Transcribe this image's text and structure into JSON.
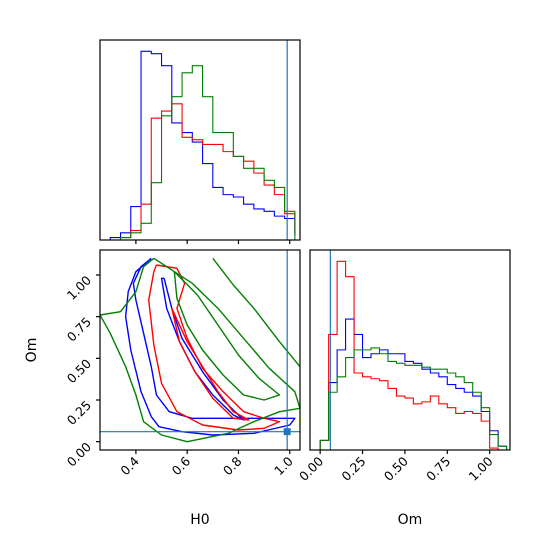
{
  "chart_data": {
    "type": "corner",
    "parameters": [
      "H0",
      "Om"
    ],
    "truth": {
      "H0": 0.99,
      "Om": 0.06,
      "color": "#1f77b4"
    },
    "series_colors": [
      "#0000ff",
      "#ff0000",
      "#008000"
    ],
    "panels": [
      {
        "id": "H0-marginal",
        "type": "histogram",
        "xlim": [
          0.26,
          1.04
        ],
        "bins_x": [
          0.3,
          0.34,
          0.38,
          0.42,
          0.46,
          0.5,
          0.54,
          0.58,
          0.62,
          0.66,
          0.7,
          0.74,
          0.78,
          0.82,
          0.86,
          0.9,
          0.94,
          0.98,
          1.02
        ],
        "xtick_values": [
          0.4,
          0.6,
          0.8,
          1.0
        ],
        "series": [
          {
            "color": "#0000ff",
            "values": [
              1,
              3,
              14,
              79,
              78,
              73,
              49,
              45,
              41,
              32,
              22,
              19,
              18,
              15,
              13,
              12,
              10,
              9,
              2
            ]
          },
          {
            "color": "#ff0000",
            "values": [
              0,
              1,
              4,
              15,
              51,
              54,
              57,
              43,
              42,
              40,
              40,
              37,
              35,
              33,
              28,
              23,
              19,
              11,
              3
            ]
          },
          {
            "color": "#008000",
            "values": [
              0,
              1,
              3,
              7,
              24,
              52,
              60,
              70,
              73,
              60,
              45,
              45,
              35,
              30,
              30,
              25,
              22,
              12,
              0
            ]
          }
        ]
      },
      {
        "id": "H0-Om-joint",
        "type": "contour",
        "xlim": [
          0.26,
          1.04
        ],
        "ylim": [
          -0.05,
          1.15
        ],
        "xtick_labels": [
          "0.4",
          "0.6",
          "0.8",
          "1.0"
        ],
        "xtick_values": [
          0.4,
          0.6,
          0.8,
          1.0
        ],
        "ytick_labels": [
          "0.00",
          "0.25",
          "0.50",
          "0.75",
          "1.00"
        ],
        "ytick_values": [
          0.0,
          0.25,
          0.5,
          0.75,
          1.0
        ],
        "xlabel": "H0",
        "ylabel": "Om",
        "contours": [
          {
            "color": "#0000ff",
            "points": [
              [
                0.46,
                1.1
              ],
              [
                0.42,
                1.05
              ],
              [
                0.39,
                0.95
              ],
              [
                0.4,
                0.85
              ],
              [
                0.43,
                0.65
              ],
              [
                0.46,
                0.45
              ],
              [
                0.48,
                0.28
              ],
              [
                0.53,
                0.18
              ],
              [
                0.62,
                0.14
              ],
              [
                0.78,
                0.14
              ],
              [
                0.92,
                0.14
              ],
              [
                1.02,
                0.14
              ],
              [
                1.0,
                0.1
              ],
              [
                0.86,
                0.05
              ],
              [
                0.7,
                0.04
              ],
              [
                0.58,
                0.06
              ],
              [
                0.49,
                0.09
              ],
              [
                0.46,
                0.15
              ],
              [
                0.42,
                0.3
              ],
              [
                0.38,
                0.55
              ],
              [
                0.36,
                0.75
              ],
              [
                0.37,
                0.9
              ],
              [
                0.4,
                1.02
              ],
              [
                0.46,
                1.1
              ]
            ]
          },
          {
            "color": "#0000ff",
            "points": [
              [
                0.51,
                0.98
              ],
              [
                0.54,
                0.8
              ],
              [
                0.58,
                0.62
              ],
              [
                0.66,
                0.42
              ],
              [
                0.74,
                0.25
              ],
              [
                0.82,
                0.13
              ],
              [
                0.78,
                0.16
              ],
              [
                0.7,
                0.28
              ],
              [
                0.63,
                0.42
              ],
              [
                0.57,
                0.6
              ],
              [
                0.52,
                0.8
              ],
              [
                0.5,
                0.98
              ],
              [
                0.51,
                0.98
              ]
            ]
          },
          {
            "color": "#ff0000",
            "points": [
              [
                0.48,
                1.06
              ],
              [
                0.56,
                1.04
              ],
              [
                0.59,
                0.95
              ],
              [
                0.56,
                0.8
              ],
              [
                0.6,
                0.62
              ],
              [
                0.66,
                0.44
              ],
              [
                0.74,
                0.3
              ],
              [
                0.82,
                0.18
              ],
              [
                0.9,
                0.14
              ],
              [
                0.96,
                0.12
              ],
              [
                0.9,
                0.08
              ],
              [
                0.8,
                0.07
              ],
              [
                0.66,
                0.1
              ],
              [
                0.56,
                0.18
              ],
              [
                0.5,
                0.35
              ],
              [
                0.47,
                0.58
              ],
              [
                0.45,
                0.85
              ],
              [
                0.47,
                1.02
              ],
              [
                0.48,
                1.06
              ]
            ]
          },
          {
            "color": "#ff0000",
            "points": [
              [
                0.54,
                0.8
              ],
              [
                0.6,
                0.6
              ],
              [
                0.66,
                0.45
              ],
              [
                0.72,
                0.3
              ],
              [
                0.78,
                0.18
              ],
              [
                0.84,
                0.13
              ],
              [
                0.78,
                0.14
              ],
              [
                0.7,
                0.26
              ],
              [
                0.63,
                0.42
              ],
              [
                0.57,
                0.6
              ],
              [
                0.54,
                0.8
              ]
            ]
          },
          {
            "color": "#008000",
            "points": [
              [
                0.47,
                1.1
              ],
              [
                0.62,
                0.95
              ],
              [
                0.72,
                0.8
              ],
              [
                0.82,
                0.62
              ],
              [
                0.92,
                0.44
              ],
              [
                1.02,
                0.3
              ],
              [
                1.04,
                0.2
              ],
              [
                0.96,
                0.18
              ],
              [
                0.86,
                0.12
              ],
              [
                0.76,
                0.05
              ],
              [
                0.6,
                0.0
              ],
              [
                0.5,
                0.04
              ],
              [
                0.43,
                0.12
              ],
              [
                0.4,
                0.28
              ],
              [
                0.36,
                0.45
              ],
              [
                0.3,
                0.65
              ],
              [
                0.26,
                0.76
              ],
              [
                0.34,
                0.78
              ],
              [
                0.4,
                0.9
              ],
              [
                0.43,
                1.05
              ],
              [
                0.47,
                1.1
              ]
            ]
          },
          {
            "color": "#008000",
            "points": [
              [
                0.55,
                1.02
              ],
              [
                0.64,
                0.88
              ],
              [
                0.72,
                0.7
              ],
              [
                0.8,
                0.52
              ],
              [
                0.88,
                0.38
              ],
              [
                0.96,
                0.28
              ],
              [
                0.9,
                0.25
              ],
              [
                0.82,
                0.28
              ],
              [
                0.74,
                0.4
              ],
              [
                0.66,
                0.55
              ],
              [
                0.6,
                0.7
              ],
              [
                0.56,
                0.86
              ],
              [
                0.55,
                1.02
              ]
            ]
          },
          {
            "color": "#008000",
            "points": [
              [
                0.7,
                1.1
              ],
              [
                0.78,
                0.94
              ],
              [
                0.86,
                0.8
              ],
              [
                0.96,
                0.6
              ],
              [
                1.04,
                0.45
              ]
            ]
          }
        ]
      },
      {
        "id": "Om-marginal",
        "type": "histogram",
        "xlim": [
          -0.06,
          1.12
        ],
        "bins_x": [
          0.0,
          0.05,
          0.1,
          0.15,
          0.2,
          0.25,
          0.3,
          0.35,
          0.4,
          0.45,
          0.5,
          0.55,
          0.6,
          0.65,
          0.7,
          0.75,
          0.8,
          0.85,
          0.9,
          0.95,
          1.0,
          1.05,
          1.1
        ],
        "xtick_labels": [
          "0.00",
          "0.25",
          "0.50",
          "0.75",
          "1.00"
        ],
        "xtick_values": [
          0.0,
          0.25,
          0.5,
          0.75,
          1.0
        ],
        "xlabel": "Om",
        "series": [
          {
            "color": "#0000ff",
            "values": [
              5,
              35,
              52,
              68,
              60,
              48,
              50,
              52,
              50,
              50,
              46,
              45,
              42,
              40,
              38,
              34,
              32,
              30,
              28,
              20,
              10,
              2
            ]
          },
          {
            "color": "#ff0000",
            "values": [
              5,
              60,
              98,
              90,
              40,
              38,
              37,
              36,
              32,
              28,
              27,
              24,
              25,
              28,
              24,
              22,
              19,
              20,
              19,
              15,
              1,
              0
            ]
          },
          {
            "color": "#008000",
            "values": [
              5,
              30,
              38,
              48,
              52,
              52,
              53,
              50,
              46,
              45,
              44,
              44,
              43,
              42,
              42,
              40,
              38,
              35,
              30,
              22,
              8,
              2
            ]
          }
        ]
      }
    ]
  }
}
